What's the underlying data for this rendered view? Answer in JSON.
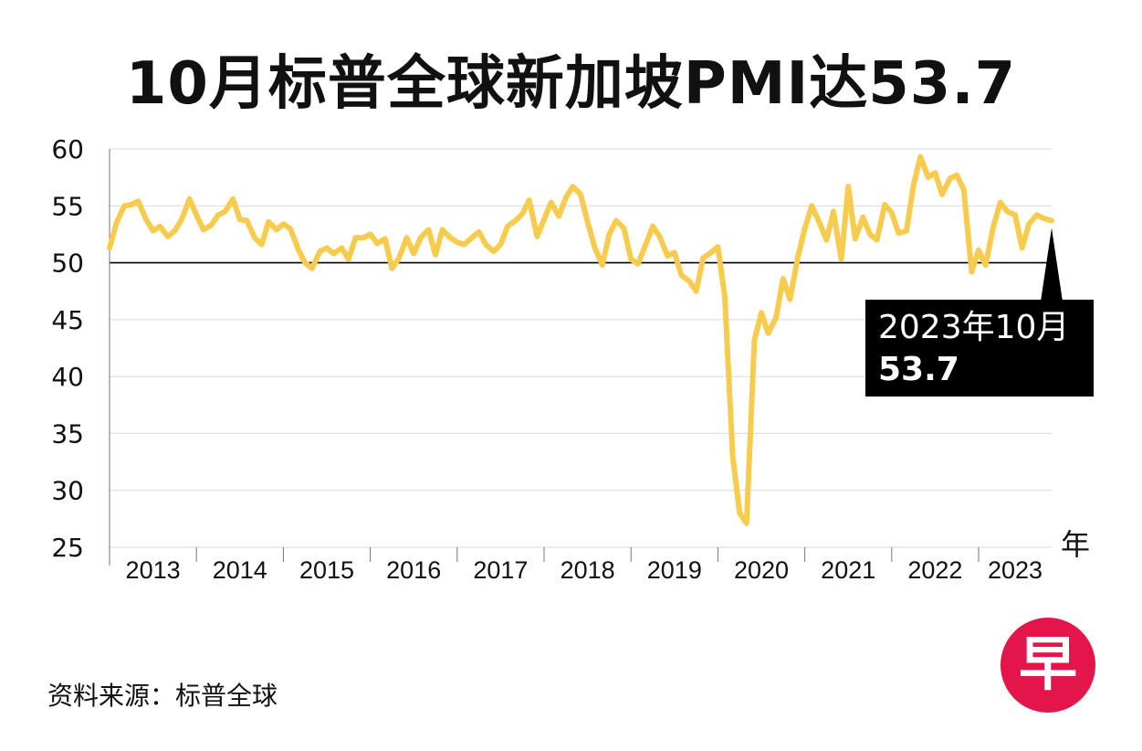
{
  "title": "10月标普全球新加坡PMI达53.7",
  "source": "资料来源：标普全球",
  "logo_text": "早",
  "colors": {
    "line": "#f7cb4d",
    "annotation_bg": "#000000",
    "logo": "#e4154b"
  },
  "annotation": {
    "line1": "2023年10月",
    "line2": "53.7"
  },
  "chart_data": {
    "type": "line",
    "ylim": [
      25,
      60
    ],
    "yticks": [
      25,
      30,
      35,
      40,
      45,
      50,
      55,
      60
    ],
    "xlim": [
      2013,
      2023.84
    ],
    "year_labels": [
      "2013",
      "2014",
      "2015",
      "2016",
      "2017",
      "2018",
      "2019",
      "2020",
      "2021",
      "2022",
      "2023"
    ],
    "x_unit": "年",
    "reference_line": 50,
    "grid": true,
    "series": [
      {
        "x": [
          2013.0,
          2013.08,
          2013.17,
          2013.25,
          2013.33,
          2013.42,
          2013.5,
          2013.58,
          2013.67,
          2013.75,
          2013.83,
          2013.92,
          2014.0,
          2014.08,
          2014.17,
          2014.25,
          2014.33,
          2014.42,
          2014.5,
          2014.58,
          2014.67,
          2014.75,
          2014.83,
          2014.92,
          2015.0,
          2015.08,
          2015.17,
          2015.25,
          2015.33,
          2015.42,
          2015.5,
          2015.58,
          2015.67,
          2015.75,
          2015.83,
          2015.92,
          2016.0,
          2016.08,
          2016.17,
          2016.25,
          2016.33,
          2016.42,
          2016.5,
          2016.58,
          2016.67,
          2016.75,
          2016.83,
          2016.92,
          2017.0,
          2017.08,
          2017.17,
          2017.25,
          2017.33,
          2017.42,
          2017.5,
          2017.58,
          2017.67,
          2017.75,
          2017.83,
          2017.92,
          2018.0,
          2018.08,
          2018.17,
          2018.25,
          2018.33,
          2018.42,
          2018.5,
          2018.58,
          2018.67,
          2018.75,
          2018.83,
          2018.92,
          2019.0,
          2019.08,
          2019.17,
          2019.25,
          2019.33,
          2019.42,
          2019.5,
          2019.58,
          2019.67,
          2019.75,
          2019.83,
          2019.92,
          2020.0,
          2020.08,
          2020.17,
          2020.25,
          2020.33,
          2020.42,
          2020.5,
          2020.58,
          2020.67,
          2020.75,
          2020.83,
          2020.92,
          2021.0,
          2021.08,
          2021.17,
          2021.25,
          2021.33,
          2021.42,
          2021.5,
          2021.58,
          2021.67,
          2021.75,
          2021.83,
          2021.92,
          2022.0,
          2022.08,
          2022.17,
          2022.25,
          2022.33,
          2022.42,
          2022.5,
          2022.58,
          2022.67,
          2022.75,
          2022.83,
          2022.92,
          2023.0,
          2023.08,
          2023.17,
          2023.25,
          2023.33,
          2023.42,
          2023.5,
          2023.58,
          2023.67,
          2023.75,
          2023.84
        ],
        "values": [
          51.3,
          53.5,
          55.0,
          55.1,
          55.4,
          53.8,
          52.8,
          53.2,
          52.3,
          52.8,
          53.8,
          55.6,
          54.2,
          52.9,
          53.3,
          54.2,
          54.5,
          55.6,
          53.8,
          53.7,
          52.2,
          51.6,
          53.6,
          52.9,
          53.4,
          53.0,
          51.2,
          50.0,
          49.5,
          51.0,
          51.3,
          50.8,
          51.3,
          50.3,
          52.2,
          52.2,
          52.5,
          51.7,
          52.1,
          49.5,
          50.4,
          52.2,
          50.8,
          52.2,
          52.9,
          50.7,
          52.9,
          52.2,
          51.8,
          51.6,
          52.2,
          52.7,
          51.6,
          51.0,
          51.6,
          53.2,
          53.7,
          54.3,
          55.5,
          52.3,
          53.8,
          55.3,
          54.1,
          55.7,
          56.7,
          56.0,
          53.6,
          51.4,
          49.8,
          52.5,
          53.7,
          53.0,
          50.3,
          49.9,
          51.6,
          53.2,
          52.3,
          50.6,
          50.9,
          48.9,
          48.4,
          47.5,
          50.4,
          50.9,
          51.4,
          47.0,
          33.0,
          28.0,
          27.1,
          43.2,
          45.6,
          43.8,
          45.2,
          48.6,
          46.8,
          50.5,
          53.0,
          55.0,
          53.5,
          52.0,
          54.5,
          50.3,
          56.7,
          52.1,
          54.0,
          52.5,
          52.0,
          55.1,
          54.4,
          52.6,
          52.8,
          56.8,
          59.3,
          57.5,
          57.9,
          56.0,
          57.4,
          57.7,
          56.4,
          49.2,
          51.1,
          49.8,
          53.2,
          55.3,
          54.5,
          54.2,
          51.3,
          53.4,
          54.2,
          53.9,
          53.7
        ]
      }
    ]
  }
}
